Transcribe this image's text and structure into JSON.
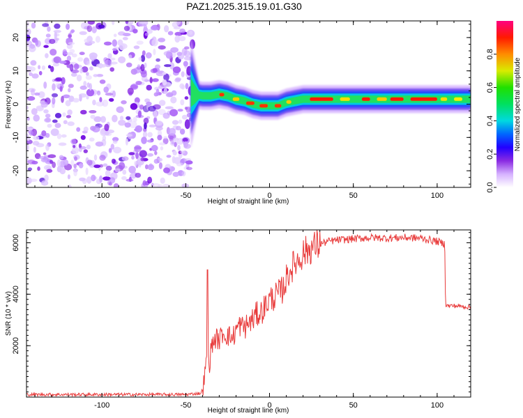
{
  "title": "PAZ1.2025.315.19.01.G30",
  "chart_data": [
    {
      "type": "heatmap",
      "name": "spectrogram",
      "xlabel": "Height of straight line (km)",
      "ylabel": "Frequency (Hz)",
      "xlim": [
        -145,
        120
      ],
      "ylim": [
        -25,
        25
      ],
      "xticks": [
        -100,
        -50,
        0,
        50,
        100
      ],
      "yticks": [
        -20,
        -10,
        0,
        10,
        20
      ],
      "noise_region_x": [
        -145,
        -47
      ],
      "ridge": {
        "x": [
          -47,
          -45,
          -40,
          -35,
          -30,
          -25,
          -20,
          -15,
          -10,
          -5,
          0,
          5,
          10,
          15,
          20,
          40,
          60,
          80,
          100,
          120
        ],
        "freq": [
          3.5,
          3.0,
          2.5,
          2.5,
          3.0,
          2.5,
          1.5,
          1.0,
          0.0,
          -0.5,
          -0.5,
          -0.5,
          0.5,
          1.0,
          1.5,
          1.5,
          1.5,
          1.5,
          1.5,
          1.5
        ]
      },
      "colorbar": {
        "label": "Normalized spectral amplitude",
        "range": [
          0.0,
          1.0
        ],
        "ticks": [
          "0.0",
          "0.2",
          "0.4",
          "0.6",
          "0.8"
        ]
      }
    },
    {
      "type": "line",
      "name": "snr",
      "xlabel": "Height of straight line (km)",
      "ylabel": "SNR (10 * v/v)",
      "xlim": [
        -145,
        120
      ],
      "ylim": [
        0,
        6500
      ],
      "xticks": [
        -100,
        -50,
        0,
        50,
        100
      ],
      "yticks": [
        2000,
        4000,
        6000
      ],
      "color": "#e83a3a",
      "series": [
        {
          "name": "SNR",
          "x": [
            -145,
            -100,
            -50,
            -41,
            -40,
            -39,
            -38,
            -37.5,
            -37,
            -36.5,
            -36,
            -35,
            -34,
            -32,
            -30,
            -28,
            -25,
            -22,
            -20,
            -18,
            -15,
            -12,
            -10,
            -8,
            -5,
            -3,
            0,
            3,
            5,
            8,
            10,
            12,
            15,
            18,
            20,
            25,
            30,
            35,
            40,
            50,
            60,
            70,
            80,
            90,
            100,
            104.5,
            105,
            106,
            110,
            120
          ],
          "values": [
            100,
            100,
            100,
            150,
            300,
            700,
            1100,
            1700,
            4950,
            1400,
            1200,
            1800,
            2100,
            2300,
            2200,
            2500,
            2400,
            2300,
            2600,
            2800,
            2700,
            2900,
            3000,
            3200,
            3300,
            3500,
            3800,
            3900,
            4000,
            4200,
            4600,
            4900,
            5200,
            5400,
            5600,
            5800,
            5950,
            6050,
            6100,
            6150,
            6200,
            6180,
            6200,
            6180,
            6050,
            5950,
            3600,
            3550,
            3550,
            3500
          ]
        }
      ]
    }
  ]
}
